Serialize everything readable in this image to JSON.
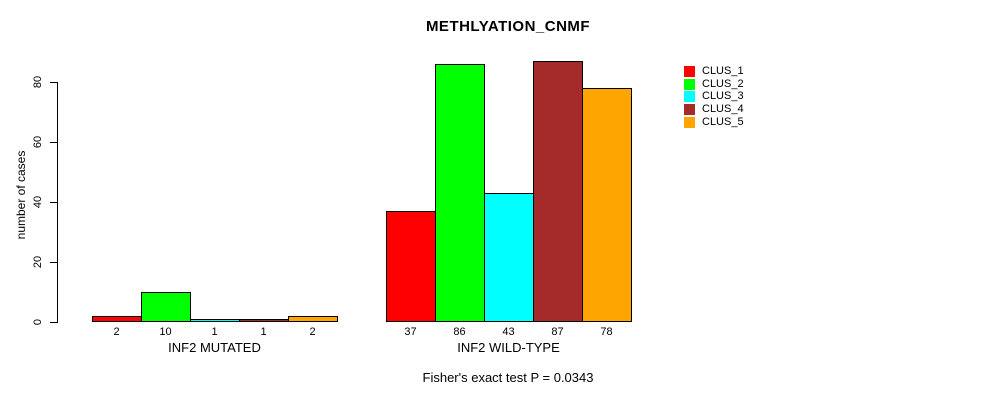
{
  "chart_data": {
    "type": "bar",
    "title": "METHLYATION_CNMF",
    "subtitle": "Fisher's exact test P = 0.0343",
    "ylabel": "number of cases",
    "xlabel": "",
    "yticks": [
      0,
      20,
      40,
      60,
      80
    ],
    "ylim": [
      0,
      87
    ],
    "grid": false,
    "legend_position": "right",
    "categories": [
      "INF2 MUTATED",
      "INF2 WILD-TYPE"
    ],
    "series": [
      {
        "name": "CLUS_1",
        "color": "#ff0000",
        "values": [
          2,
          37
        ]
      },
      {
        "name": "CLUS_2",
        "color": "#00ff00",
        "values": [
          10,
          86
        ]
      },
      {
        "name": "CLUS_3",
        "color": "#00ffff",
        "values": [
          1,
          43
        ]
      },
      {
        "name": "CLUS_4",
        "color": "#a52a2a",
        "values": [
          1,
          87
        ]
      },
      {
        "name": "CLUS_5",
        "color": "#ffa500",
        "values": [
          2,
          78
        ]
      }
    ]
  }
}
